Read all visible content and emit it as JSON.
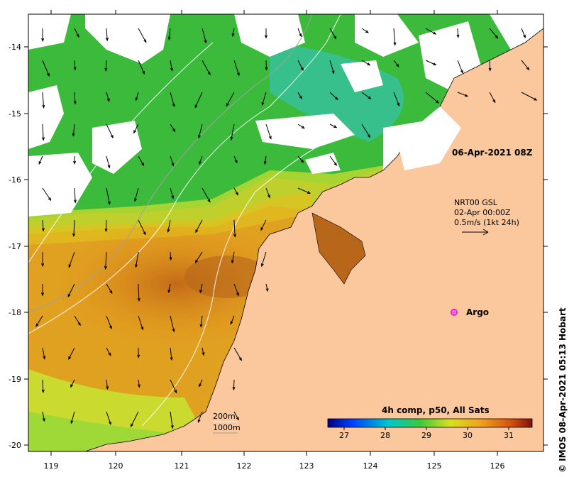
{
  "map": {
    "lon_ticks": [
      "119",
      "120",
      "121",
      "122",
      "123",
      "124",
      "125",
      "126"
    ],
    "lat_ticks": [
      "-14",
      "-15",
      "-16",
      "-17",
      "-18",
      "-19",
      "-20"
    ],
    "timestamp_label": "06-Apr-2021 08Z",
    "current_legend": {
      "line1": "NRT00 GSL",
      "line2": "02-Apr 00:00Z",
      "line3": "0.5m/s (1kt 24h)"
    },
    "argo_label": "Argo",
    "depth_legend": {
      "line1": "200m",
      "line2": "1000m"
    },
    "colorbar": {
      "title": "4h comp, p50, All Sats",
      "ticks": [
        "27",
        "28",
        "29",
        "30",
        "31"
      ]
    },
    "credit": "© IMOS 08-Apr-2021 05:13 Hobart",
    "colors": {
      "land": "#fbc79c",
      "cloud": "#ffffff",
      "sst_cool": "#2aa84a",
      "sst_mid": "#b8e03a",
      "sst_warm": "#e89a1c",
      "sst_hot": "#b8661a",
      "argo": "#e020e0"
    }
  }
}
